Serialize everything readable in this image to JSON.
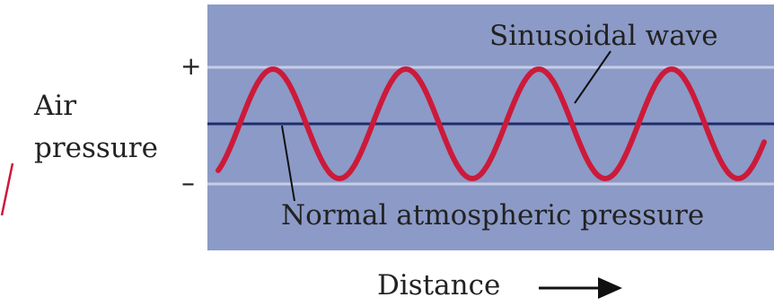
{
  "y_axis": {
    "label_line1": "Air",
    "label_line2": "pressure",
    "plus": "+",
    "minus": "–"
  },
  "x_axis": {
    "label": "Distance"
  },
  "annotations": {
    "wave": "Sinusoidal wave",
    "baseline": "Normal atmospheric pressure"
  },
  "colors": {
    "panel": "#8c9ac7",
    "wave": "#cc1a3a",
    "baseline": "#1f2d6e",
    "guide": "#c7cde6"
  }
}
